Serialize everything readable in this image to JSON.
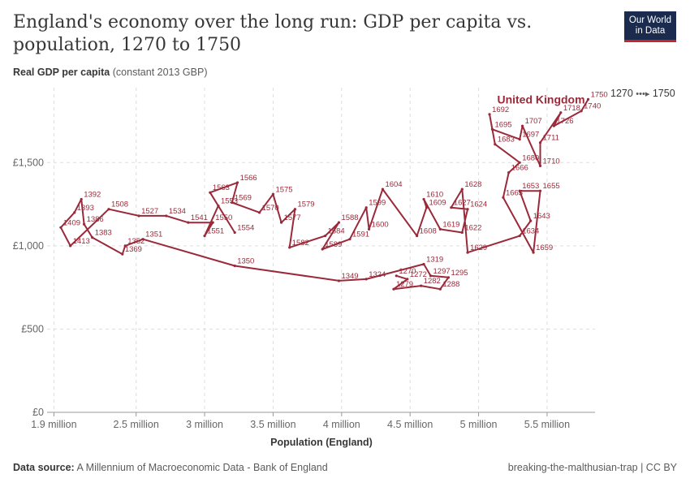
{
  "header": {
    "title": "England's economy over the long run: GDP per capita vs. population, 1270 to 1750",
    "logo_line1": "Our World",
    "logo_line2": "in Data"
  },
  "axes": {
    "ylabel_bold": "Real GDP per capita",
    "ylabel_unit": "(constant 2013 GBP)",
    "xlabel": "Population (England)"
  },
  "legend": {
    "start": "1270",
    "end": "1750"
  },
  "footer": {
    "source_label": "Data source:",
    "source_text": "A Millennium of Macroeconomic Data - Bank of England",
    "slug": "breaking-the-malthusian-trap | CC BY"
  },
  "colors": {
    "series": "#9a2a3a",
    "grid": "#dddddd",
    "axis": "#999999"
  },
  "chart_data": {
    "type": "scatter",
    "title": "England's economy over the long run: GDP per capita vs. population, 1270 to 1750",
    "xlabel": "Population (England)",
    "ylabel": "Real GDP per capita (constant 2013 GBP)",
    "xlim": [
      1.85,
      5.85
    ],
    "ylim": [
      0,
      1950
    ],
    "x_ticks": [
      {
        "v": 1.9,
        "label": "1.9 million"
      },
      {
        "v": 2.5,
        "label": "2.5 million"
      },
      {
        "v": 3.0,
        "label": "3 million"
      },
      {
        "v": 3.5,
        "label": "3.5 million"
      },
      {
        "v": 4.0,
        "label": "4 million"
      },
      {
        "v": 4.5,
        "label": "4.5 million"
      },
      {
        "v": 5.0,
        "label": "5 million"
      },
      {
        "v": 5.5,
        "label": "5.5 million"
      }
    ],
    "y_ticks": [
      {
        "v": 0,
        "label": "£0"
      },
      {
        "v": 500,
        "label": "£500"
      },
      {
        "v": 1000,
        "label": "£1,000"
      },
      {
        "v": 1500,
        "label": "£1,500"
      }
    ],
    "grid": true,
    "connected": true,
    "series": [
      {
        "name": "United Kingdom",
        "points": [
          {
            "year": 1270,
            "x": 4.4,
            "y": 820
          },
          {
            "year": 1272,
            "x": 4.48,
            "y": 800
          },
          {
            "year": 1279,
            "x": 4.38,
            "y": 740
          },
          {
            "year": 1282,
            "x": 4.58,
            "y": 760
          },
          {
            "year": 1288,
            "x": 4.72,
            "y": 740
          },
          {
            "year": 1295,
            "x": 4.78,
            "y": 810
          },
          {
            "year": 1297,
            "x": 4.65,
            "y": 820
          },
          {
            "year": 1319,
            "x": 4.6,
            "y": 890
          },
          {
            "year": 1324,
            "x": 4.18,
            "y": 800
          },
          {
            "year": 1349,
            "x": 3.98,
            "y": 790
          },
          {
            "year": 1350,
            "x": 3.22,
            "y": 880
          },
          {
            "year": 1351,
            "x": 2.55,
            "y": 1040
          },
          {
            "year": 1352,
            "x": 2.42,
            "y": 1000
          },
          {
            "year": 1369,
            "x": 2.4,
            "y": 950
          },
          {
            "year": 1383,
            "x": 2.18,
            "y": 1050
          },
          {
            "year": 1386,
            "x": 2.12,
            "y": 1130
          },
          {
            "year": 1392,
            "x": 2.1,
            "y": 1280
          },
          {
            "year": 1393,
            "x": 2.05,
            "y": 1200
          },
          {
            "year": 1409,
            "x": 1.95,
            "y": 1110
          },
          {
            "year": 1413,
            "x": 2.02,
            "y": 1000
          },
          {
            "year": 1508,
            "x": 2.3,
            "y": 1220
          },
          {
            "year": 1527,
            "x": 2.52,
            "y": 1180
          },
          {
            "year": 1534,
            "x": 2.72,
            "y": 1180
          },
          {
            "year": 1541,
            "x": 2.88,
            "y": 1140
          },
          {
            "year": 1550,
            "x": 3.06,
            "y": 1140
          },
          {
            "year": 1551,
            "x": 3.0,
            "y": 1060
          },
          {
            "year": 1553,
            "x": 3.1,
            "y": 1240
          },
          {
            "year": 1554,
            "x": 3.22,
            "y": 1080
          },
          {
            "year": 1563,
            "x": 3.04,
            "y": 1320
          },
          {
            "year": 1566,
            "x": 3.24,
            "y": 1380
          },
          {
            "year": 1569,
            "x": 3.2,
            "y": 1260
          },
          {
            "year": 1570,
            "x": 3.4,
            "y": 1200
          },
          {
            "year": 1575,
            "x": 3.5,
            "y": 1310
          },
          {
            "year": 1577,
            "x": 3.56,
            "y": 1140
          },
          {
            "year": 1579,
            "x": 3.66,
            "y": 1220
          },
          {
            "year": 1582,
            "x": 3.62,
            "y": 990
          },
          {
            "year": 1584,
            "x": 3.88,
            "y": 1060
          },
          {
            "year": 1588,
            "x": 3.98,
            "y": 1140
          },
          {
            "year": 1589,
            "x": 3.86,
            "y": 980
          },
          {
            "year": 1591,
            "x": 4.06,
            "y": 1040
          },
          {
            "year": 1599,
            "x": 4.18,
            "y": 1230
          },
          {
            "year": 1600,
            "x": 4.2,
            "y": 1100
          },
          {
            "year": 1604,
            "x": 4.3,
            "y": 1340
          },
          {
            "year": 1608,
            "x": 4.55,
            "y": 1060
          },
          {
            "year": 1609,
            "x": 4.62,
            "y": 1230
          },
          {
            "year": 1610,
            "x": 4.6,
            "y": 1280
          },
          {
            "year": 1619,
            "x": 4.72,
            "y": 1100
          },
          {
            "year": 1622,
            "x": 4.88,
            "y": 1080
          },
          {
            "year": 1624,
            "x": 4.92,
            "y": 1220
          },
          {
            "year": 1627,
            "x": 4.8,
            "y": 1230
          },
          {
            "year": 1628,
            "x": 4.88,
            "y": 1340
          },
          {
            "year": 1629,
            "x": 4.92,
            "y": 960
          },
          {
            "year": 1634,
            "x": 5.3,
            "y": 1060
          },
          {
            "year": 1643,
            "x": 5.38,
            "y": 1150
          },
          {
            "year": 1653,
            "x": 5.3,
            "y": 1330
          },
          {
            "year": 1655,
            "x": 5.45,
            "y": 1330
          },
          {
            "year": 1659,
            "x": 5.4,
            "y": 960
          },
          {
            "year": 1665,
            "x": 5.18,
            "y": 1290
          },
          {
            "year": 1666,
            "x": 5.22,
            "y": 1440
          },
          {
            "year": 1680,
            "x": 5.3,
            "y": 1500
          },
          {
            "year": 1683,
            "x": 5.12,
            "y": 1610
          },
          {
            "year": 1692,
            "x": 5.08,
            "y": 1790
          },
          {
            "year": 1695,
            "x": 5.1,
            "y": 1700
          },
          {
            "year": 1697,
            "x": 5.3,
            "y": 1640
          },
          {
            "year": 1707,
            "x": 5.32,
            "y": 1720
          },
          {
            "year": 1710,
            "x": 5.45,
            "y": 1480
          },
          {
            "year": 1711,
            "x": 5.45,
            "y": 1620
          },
          {
            "year": 1718,
            "x": 5.6,
            "y": 1800
          },
          {
            "year": 1726,
            "x": 5.55,
            "y": 1720
          },
          {
            "year": 1740,
            "x": 5.75,
            "y": 1810
          },
          {
            "year": 1750,
            "x": 5.8,
            "y": 1880
          }
        ]
      }
    ]
  }
}
